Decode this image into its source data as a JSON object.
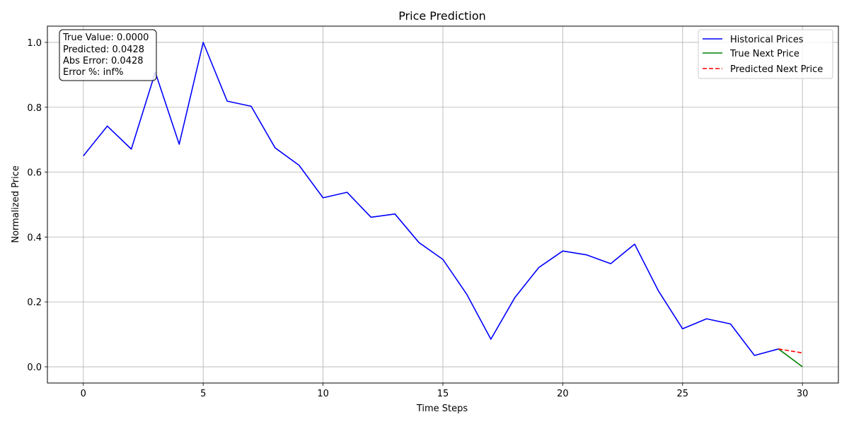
{
  "chart_data": {
    "type": "line",
    "title": "Price Prediction",
    "xlabel": "Time Steps",
    "ylabel": "Normalized Price",
    "xlim": [
      -1.5,
      31.5
    ],
    "ylim": [
      -0.05,
      1.05
    ],
    "xticks": [
      0,
      5,
      10,
      15,
      20,
      25,
      30
    ],
    "yticks": [
      0.0,
      0.2,
      0.4,
      0.6,
      0.8,
      1.0
    ],
    "xtick_labels": [
      "0",
      "5",
      "10",
      "15",
      "20",
      "25",
      "30"
    ],
    "ytick_labels": [
      "0.0",
      "0.2",
      "0.4",
      "0.6",
      "0.8",
      "1.0"
    ],
    "grid": true,
    "legend_position": "top-right",
    "series": [
      {
        "name": "Historical Prices",
        "color": "#0000ff",
        "style": "solid",
        "x": [
          0,
          1,
          2,
          3,
          4,
          5,
          6,
          7,
          8,
          9,
          10,
          11,
          12,
          13,
          14,
          15,
          16,
          17,
          18,
          19,
          20,
          21,
          22,
          23,
          24,
          25,
          26,
          27,
          28,
          29
        ],
        "y": [
          0.65,
          0.742,
          0.671,
          0.908,
          0.686,
          1.0,
          0.819,
          0.803,
          0.675,
          0.621,
          0.521,
          0.538,
          0.461,
          0.471,
          0.383,
          0.331,
          0.223,
          0.085,
          0.213,
          0.306,
          0.357,
          0.345,
          0.318,
          0.378,
          0.233,
          0.117,
          0.148,
          0.132,
          0.035,
          0.055
        ]
      },
      {
        "name": "True Next Price",
        "color": "#008000",
        "style": "solid",
        "x": [
          29,
          30
        ],
        "y": [
          0.055,
          0.0
        ]
      },
      {
        "name": "Predicted Next Price",
        "color": "#ff0000",
        "style": "dashed",
        "x": [
          29,
          30
        ],
        "y": [
          0.055,
          0.0428
        ]
      }
    ],
    "annotation": [
      "True Value: 0.0000",
      "Predicted: 0.0428",
      "Abs Error: 0.0428",
      "Error %: inf%"
    ]
  }
}
